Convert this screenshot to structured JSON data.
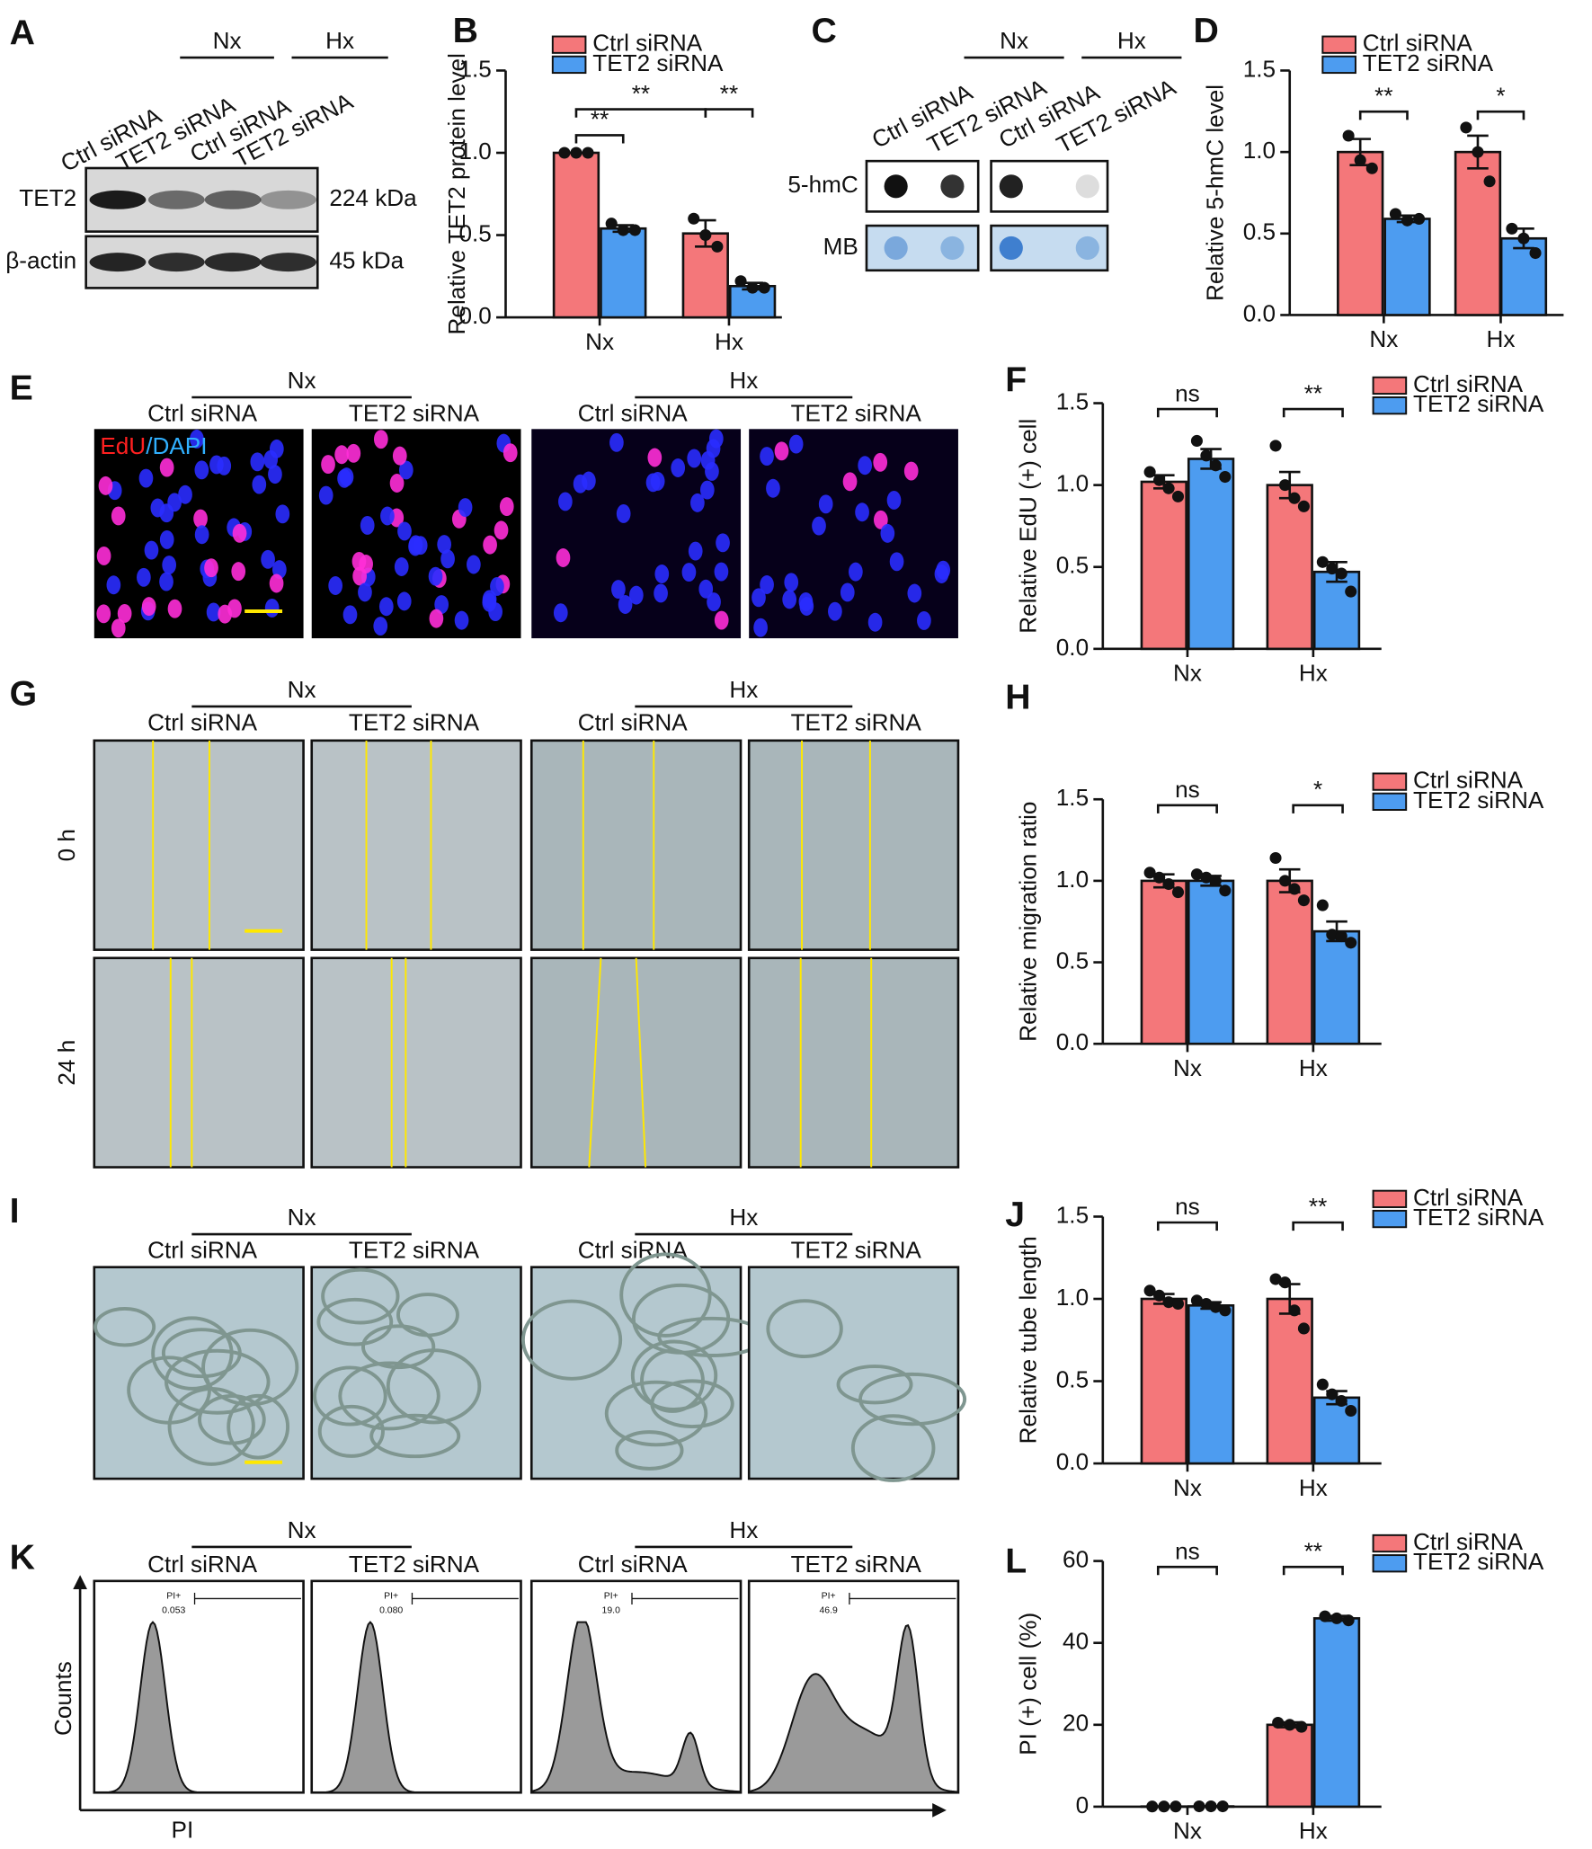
{
  "panel_letters": [
    "A",
    "B",
    "C",
    "D",
    "E",
    "F",
    "G",
    "H",
    "I",
    "J",
    "K",
    "L"
  ],
  "blot_A": {
    "groups": [
      "Nx",
      "Hx"
    ],
    "lanes": [
      "Ctrl siRNA",
      "TET2 siRNA",
      "Ctrl siRNA",
      "TET2 siRNA"
    ],
    "rows": [
      "TET2",
      "β-actin"
    ],
    "sizes": [
      "224 kDa",
      "45 kDa"
    ]
  },
  "dot_blot_C": {
    "groups": [
      "Nx",
      "Hx"
    ],
    "lanes": [
      "Ctrl siRNA",
      "TET2 siRNA",
      "Ctrl siRNA",
      "TET2 siRNA"
    ],
    "rows": [
      "5-hmC",
      "MB"
    ]
  },
  "images_E": {
    "groups": [
      "Nx",
      "Hx"
    ],
    "conditions": [
      "Ctrl siRNA",
      "TET2 siRNA",
      "Ctrl siRNA",
      "TET2 siRNA"
    ],
    "stain": [
      "EdU",
      "/DAPI"
    ]
  },
  "images_G": {
    "groups": [
      "Nx",
      "Hx"
    ],
    "conditions": [
      "Ctrl siRNA",
      "TET2 siRNA",
      "Ctrl siRNA",
      "TET2 siRNA"
    ],
    "times": [
      "0 h",
      "24 h"
    ]
  },
  "images_I": {
    "groups": [
      "Nx",
      "Hx"
    ],
    "conditions": [
      "Ctrl siRNA",
      "TET2 siRNA",
      "Ctrl siRNA",
      "TET2 siRNA"
    ]
  },
  "flow_K": {
    "groups": [
      "Nx",
      "Hx"
    ],
    "conditions": [
      "Ctrl siRNA",
      "TET2 siRNA",
      "Ctrl siRNA",
      "TET2 siRNA"
    ],
    "y_label": "Counts",
    "x_label": "PI",
    "gate": "PI+",
    "percentages": [
      "0.053",
      "0.080",
      "19.0",
      "46.9"
    ]
  },
  "chart_data": [
    {
      "type": "bar",
      "y_label": "Relative TET2 protein level",
      "categories": [
        "Nx",
        "Hx"
      ],
      "ylim": [
        0,
        1.5
      ],
      "yticks": [
        {
          "value": 0,
          "label": "0.0"
        },
        {
          "value": 0.5,
          "label": "0.5"
        },
        {
          "value": 1,
          "label": "1.0"
        },
        {
          "value": 1.5,
          "label": "1.5"
        }
      ],
      "annotations": [
        "**",
        "**",
        "**"
      ],
      "series": [
        {
          "name": "Ctrl siRNA",
          "color": "#f4777a",
          "values": [
            1.0,
            0.51
          ],
          "errors": [
            0,
            0.08
          ],
          "points": [
            [
              1,
              1,
              1
            ],
            [
              0.6,
              0.5,
              0.43
            ]
          ]
        },
        {
          "name": "TET2 siRNA",
          "color": "#4d9cf0",
          "values": [
            0.54,
            0.19
          ],
          "errors": [
            0.02,
            0.02
          ],
          "points": [
            [
              0.57,
              0.53,
              0.53
            ],
            [
              0.22,
              0.18,
              0.18
            ]
          ]
        }
      ]
    },
    {
      "type": "bar",
      "y_label": "Relative 5-hmC level",
      "categories": [
        "Nx",
        "Hx"
      ],
      "ylim": [
        0,
        1.5
      ],
      "yticks": [
        {
          "value": 0,
          "label": "0.0"
        },
        {
          "value": 0.5,
          "label": "0.5"
        },
        {
          "value": 1,
          "label": "1.0"
        },
        {
          "value": 1.5,
          "label": "1.5"
        }
      ],
      "annotations": [
        "**",
        "*"
      ],
      "series": [
        {
          "name": "Ctrl siRNA",
          "color": "#f4777a",
          "values": [
            1.0,
            1.0
          ],
          "errors": [
            0.08,
            0.1
          ],
          "points": [
            [
              1.1,
              0.95,
              0.9
            ],
            [
              1.15,
              1.0,
              0.82
            ]
          ]
        },
        {
          "name": "TET2 siRNA",
          "color": "#4d9cf0",
          "values": [
            0.59,
            0.47
          ],
          "errors": [
            0.02,
            0.06
          ],
          "points": [
            [
              0.62,
              0.58,
              0.59
            ],
            [
              0.53,
              0.47,
              0.38
            ]
          ]
        }
      ]
    },
    {
      "type": "bar",
      "y_label": "Relative EdU (+) cell",
      "categories": [
        "Nx",
        "Hx"
      ],
      "ylim": [
        0,
        1.5
      ],
      "yticks": [
        {
          "value": 0,
          "label": "0.0"
        },
        {
          "value": 0.5,
          "label": "0.5"
        },
        {
          "value": 1,
          "label": "1.0"
        },
        {
          "value": 1.5,
          "label": "1.5"
        }
      ],
      "annotations": [
        "ns",
        "**"
      ],
      "series": [
        {
          "name": "Ctrl siRNA",
          "color": "#f4777a",
          "values": [
            1.02,
            1.0
          ],
          "errors": [
            0.04,
            0.08
          ],
          "points": [
            [
              1.08,
              1.03,
              0.98,
              0.93
            ],
            [
              1.24,
              1.0,
              0.92,
              0.87
            ]
          ]
        },
        {
          "name": "TET2 siRNA",
          "color": "#4d9cf0",
          "values": [
            1.16,
            0.47
          ],
          "errors": [
            0.06,
            0.06
          ],
          "points": [
            [
              1.27,
              1.18,
              1.12,
              1.05
            ],
            [
              0.53,
              0.49,
              0.46,
              0.35
            ]
          ]
        }
      ]
    },
    {
      "type": "bar",
      "y_label": "Relative migration ratio",
      "categories": [
        "Nx",
        "Hx"
      ],
      "ylim": [
        0,
        1.5
      ],
      "yticks": [
        {
          "value": 0,
          "label": "0.0"
        },
        {
          "value": 0.5,
          "label": "0.5"
        },
        {
          "value": 1,
          "label": "1.0"
        },
        {
          "value": 1.5,
          "label": "1.5"
        }
      ],
      "annotations": [
        "ns",
        "*"
      ],
      "series": [
        {
          "name": "Ctrl siRNA",
          "color": "#f4777a",
          "values": [
            1.0,
            1.0
          ],
          "errors": [
            0.04,
            0.07
          ],
          "points": [
            [
              1.05,
              1.02,
              0.98,
              0.93
            ],
            [
              1.14,
              1.0,
              0.95,
              0.88
            ]
          ]
        },
        {
          "name": "TET2 siRNA",
          "color": "#4d9cf0",
          "values": [
            1.0,
            0.69
          ],
          "errors": [
            0.03,
            0.06
          ],
          "points": [
            [
              1.04,
              1.02,
              1.0,
              0.94
            ],
            [
              0.85,
              0.67,
              0.66,
              0.62
            ]
          ]
        }
      ]
    },
    {
      "type": "bar",
      "y_label": "Relative tube length",
      "categories": [
        "Nx",
        "Hx"
      ],
      "ylim": [
        0,
        1.5
      ],
      "yticks": [
        {
          "value": 0,
          "label": "0.0"
        },
        {
          "value": 0.5,
          "label": "0.5"
        },
        {
          "value": 1,
          "label": "1.0"
        },
        {
          "value": 1.5,
          "label": "1.5"
        }
      ],
      "annotations": [
        "ns",
        "**"
      ],
      "series": [
        {
          "name": "Ctrl siRNA",
          "color": "#f4777a",
          "values": [
            1.0,
            1.0
          ],
          "errors": [
            0.03,
            0.09
          ],
          "points": [
            [
              1.05,
              1.02,
              0.98,
              0.97
            ],
            [
              1.12,
              1.1,
              0.93,
              0.82
            ]
          ]
        },
        {
          "name": "TET2 siRNA",
          "color": "#4d9cf0",
          "values": [
            0.96,
            0.4
          ],
          "errors": [
            0.02,
            0.04
          ],
          "points": [
            [
              0.99,
              0.97,
              0.95,
              0.93
            ],
            [
              0.48,
              0.42,
              0.38,
              0.32
            ]
          ]
        }
      ]
    },
    {
      "type": "bar",
      "y_label": "PI (+) cell (%)",
      "categories": [
        "Nx",
        "Hx"
      ],
      "ylim": [
        0,
        60
      ],
      "yticks": [
        0,
        20,
        40,
        60
      ],
      "annotations": [
        "ns",
        "**"
      ],
      "series": [
        {
          "name": "Ctrl siRNA",
          "color": "#f4777a",
          "values": [
            0.05,
            20
          ],
          "errors": [
            0.01,
            0.6
          ],
          "points": [
            [
              0.05,
              0.05,
              0.05
            ],
            [
              20.5,
              20,
              19.5
            ]
          ]
        },
        {
          "name": "TET2 siRNA",
          "color": "#4d9cf0",
          "values": [
            0.08,
            46
          ],
          "errors": [
            0.02,
            0.6
          ],
          "points": [
            [
              0.08,
              0.08,
              0.08
            ],
            [
              46.5,
              46,
              45.5
            ]
          ]
        }
      ]
    }
  ]
}
